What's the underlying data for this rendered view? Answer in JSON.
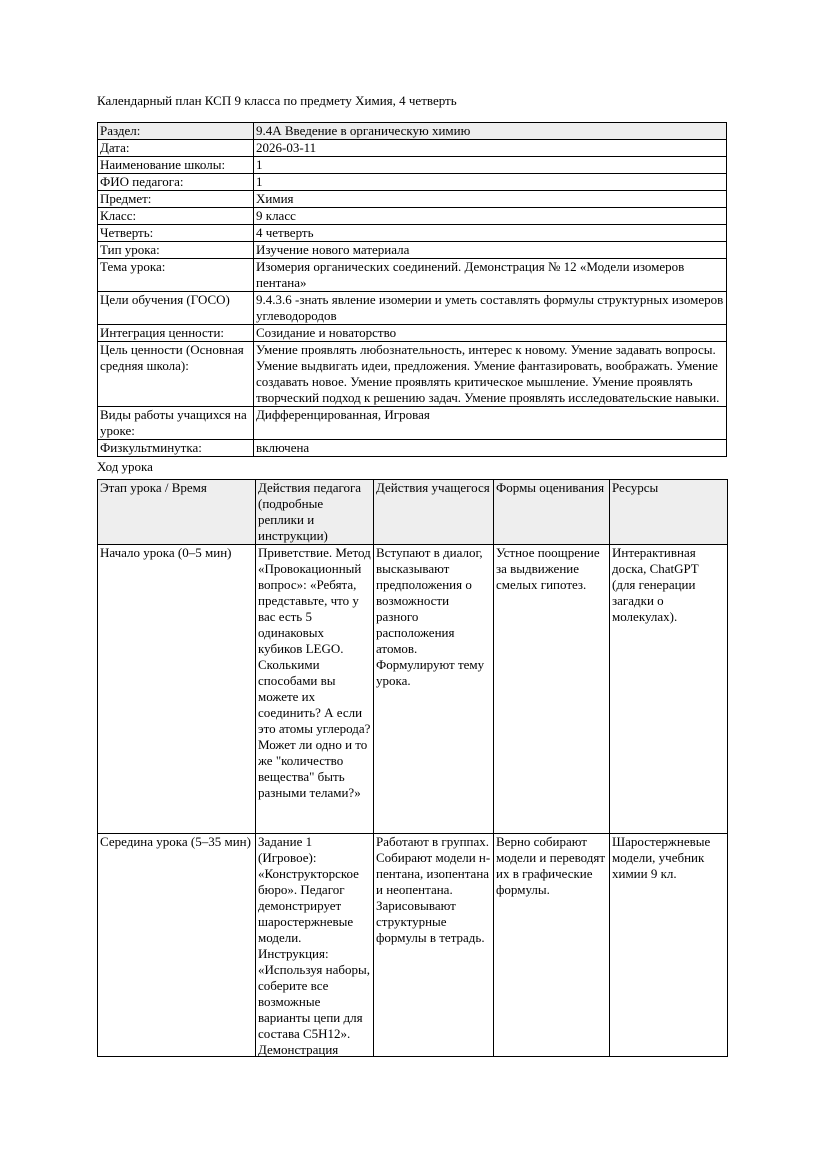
{
  "page": {
    "title": "Календарный план КСП 9 класса по предмету Химия, 4 четверть",
    "section_label": "Ход урока"
  },
  "colors": {
    "header_row_bg": "#eeeeee",
    "table_border": "#000000",
    "page_bg": "#ffffff",
    "text": "#000000"
  },
  "info_table": {
    "rows": [
      {
        "label": "Раздел:",
        "value": "9.4А Введение в органическую химию"
      },
      {
        "label": "Дата:",
        "value": "2026-03-11"
      },
      {
        "label": "Наименование школы:",
        "value": "1"
      },
      {
        "label": "ФИО педагога:",
        "value": "1"
      },
      {
        "label": "Предмет:",
        "value": "Химия"
      },
      {
        "label": "Класс:",
        "value": "9 класс"
      },
      {
        "label": "Четверть:",
        "value": "4 четверть"
      },
      {
        "label": "Тип урока:",
        "value": "Изучение нового материала"
      },
      {
        "label": "Тема урока:",
        "value": "Изомерия органических соединений. Демонстрация № 12 «Модели изомеров пентана»"
      },
      {
        "label": "Цели обучения (ГОСО)",
        "value": "9.4.3.6 -знать явление изомерии и уметь составлять формулы структурных изомеров углеводородов"
      },
      {
        "label": "Интеграция ценности:",
        "value": "Созидание и новаторство"
      },
      {
        "label": "Цель ценности (Основная средняя школа):",
        "value": "Умение проявлять любознательность, интерес к новому. Умение задавать вопросы. Умение выдвигать идеи, предложения. Умение фантазировать, воображать. Умение создавать новое. Умение проявлять критическое мышление. Умение проявлять творческий подход к решению задач. Умение проявлять исследовательские навыки."
      },
      {
        "label": "Виды работы учащихся на уроке:",
        "value": "Дифференцированная, Игровая"
      },
      {
        "label": "Физкультминутка:",
        "value": "включена"
      }
    ]
  },
  "lesson_table": {
    "headers": [
      "Этап урока / Время",
      "Действия педагога (подробные реплики и инструкции)",
      "Действия учащегося",
      "Формы оценивания",
      "Ресурсы"
    ],
    "rows": [
      {
        "stage": "Начало урока (0–5 мин)",
        "teacher": "Приветствие. Метод «Провокационный вопрос»: «Ребята, представьте, что у вас есть 5 одинаковых кубиков LEGO. Сколькими способами вы можете их соединить? А если это атомы углерода? Может ли одно и то же \"количество вещества\" быть разными телами?»",
        "student": "Вступают в диалог, высказывают предположения о возможности разного расположения атомов. Формулируют тему урока.",
        "assessment": "Устное поощрение за выдвижение смелых гипотез.",
        "resources": "Интерактивная доска, ChatGPT (для генерации загадки о молекулах)."
      },
      {
        "stage": "Середина урока (5–35 мин)",
        "teacher": "Задание 1 (Игровое): «Конструкторское бюро». Педагог демонстрирует шаростержневые модели. Инструкция: «Используя наборы, соберите все возможные варианты цепи для состава C5H12». Демонстрация",
        "student": "Работают в группах. Собирают модели н-пентана, изопентана и неопентана. Зарисовывают структурные формулы в тетрадь.",
        "assessment": "Верно собирают модели и переводят их в графические формулы.",
        "resources": "Шаростержневые модели, учебник химии 9 кл."
      }
    ]
  }
}
